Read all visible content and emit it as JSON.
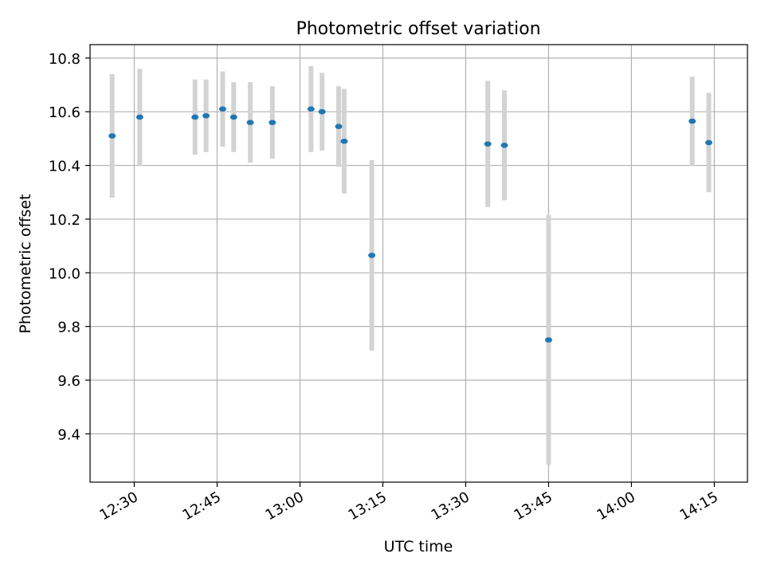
{
  "chart_data": {
    "type": "scatter",
    "title": "Photometric offset variation",
    "xlabel": "UTC time",
    "ylabel": "Photometric offset",
    "xlim": [
      "12:22",
      "14:21"
    ],
    "ylim": [
      9.22,
      10.85
    ],
    "x_ticks": [
      "12:30",
      "12:45",
      "13:00",
      "13:15",
      "13:30",
      "13:45",
      "14:00",
      "14:15"
    ],
    "y_ticks": [
      "9.4",
      "9.6",
      "9.8",
      "10.0",
      "10.2",
      "10.4",
      "10.6",
      "10.8"
    ],
    "grid": true,
    "point_color": "#1f77b4",
    "errorbar_color": "#d3d3d3",
    "series": [
      {
        "points": [
          {
            "x": "12:26",
            "y": 10.51,
            "err": 0.23
          },
          {
            "x": "12:31",
            "y": 10.58,
            "err": 0.18
          },
          {
            "x": "12:41",
            "y": 10.58,
            "err": 0.14
          },
          {
            "x": "12:43",
            "y": 10.585,
            "err": 0.135
          },
          {
            "x": "12:46",
            "y": 10.61,
            "err": 0.14
          },
          {
            "x": "12:48",
            "y": 10.58,
            "err": 0.13
          },
          {
            "x": "12:51",
            "y": 10.56,
            "err": 0.15
          },
          {
            "x": "12:55",
            "y": 10.56,
            "err": 0.135
          },
          {
            "x": "13:02",
            "y": 10.61,
            "err": 0.16
          },
          {
            "x": "13:04",
            "y": 10.6,
            "err": 0.145
          },
          {
            "x": "13:07",
            "y": 10.545,
            "err": 0.15
          },
          {
            "x": "13:08",
            "y": 10.49,
            "err": 0.195
          },
          {
            "x": "13:13",
            "y": 10.065,
            "err": 0.355
          },
          {
            "x": "13:34",
            "y": 10.48,
            "err": 0.235
          },
          {
            "x": "13:37",
            "y": 10.475,
            "err": 0.205
          },
          {
            "x": "13:45",
            "y": 9.75,
            "err": 0.465
          },
          {
            "x": "14:11",
            "y": 10.565,
            "err": 0.165
          },
          {
            "x": "14:14",
            "y": 10.485,
            "err": 0.185
          }
        ]
      }
    ]
  }
}
